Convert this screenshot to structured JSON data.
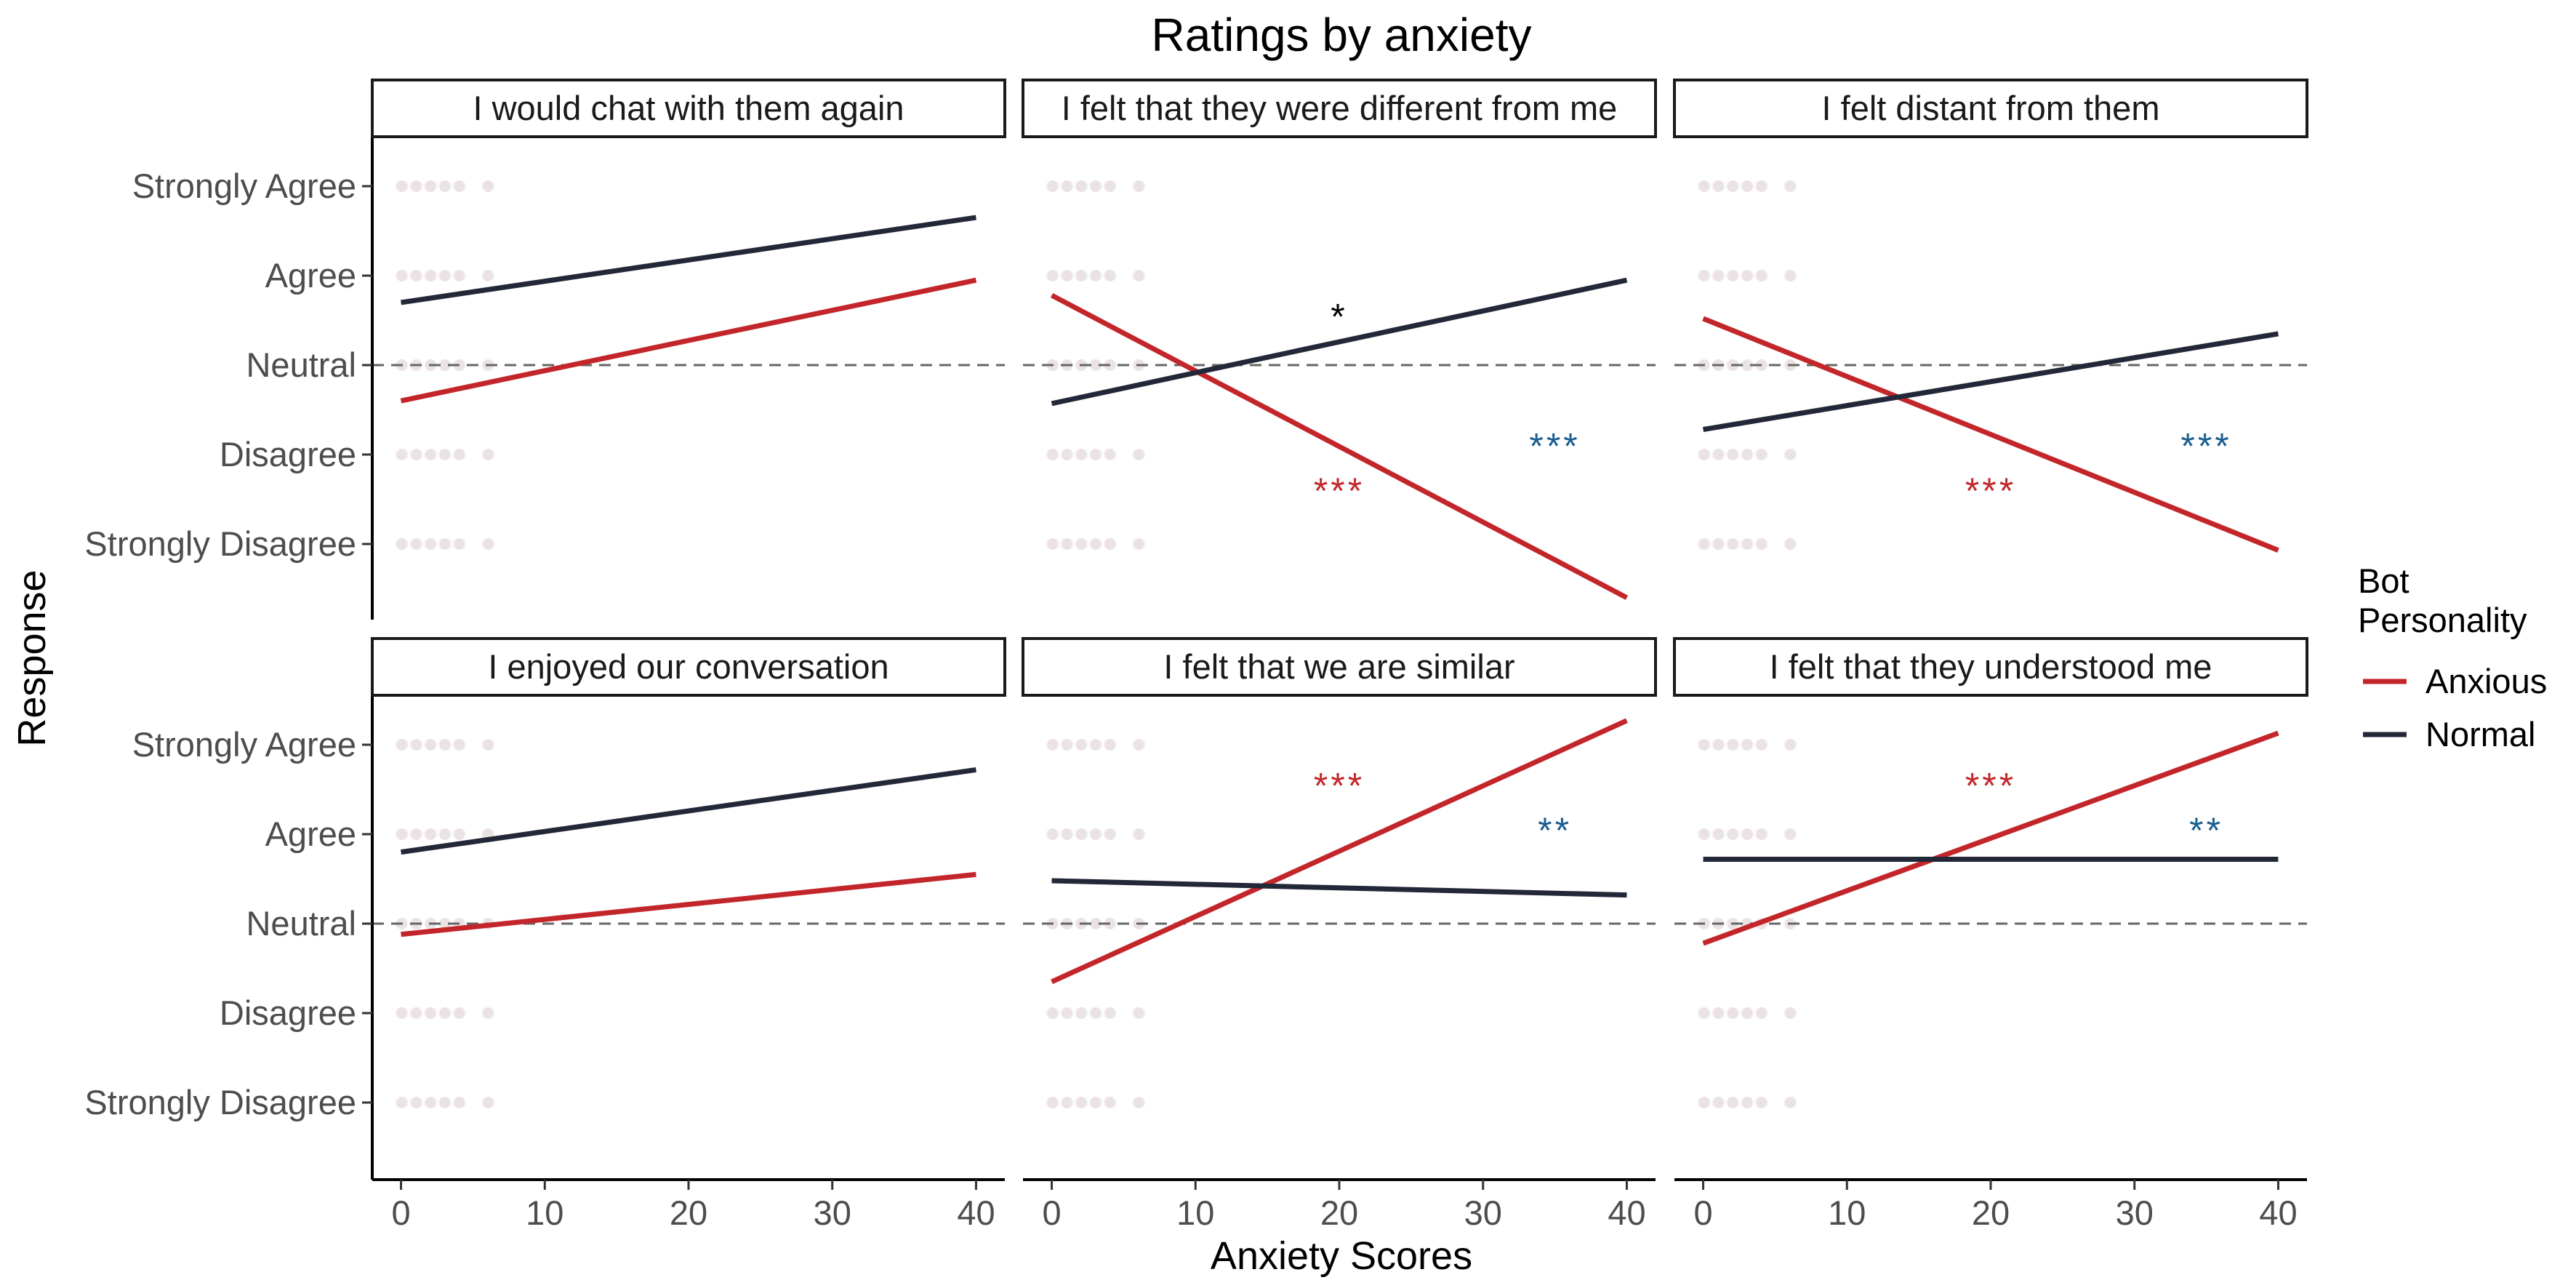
{
  "chart_data": {
    "type": "line",
    "title": "Ratings by anxiety",
    "xlabel": "Anxiety Scores",
    "ylabel": "Response",
    "xlim": [
      -2,
      42
    ],
    "x_ticks": [
      0,
      10,
      20,
      30,
      40
    ],
    "y_levels": [
      "Strongly Disagree",
      "Disagree",
      "Neutral",
      "Agree",
      "Strongly Agree"
    ],
    "y_values": [
      -2,
      -1,
      0,
      1,
      2
    ],
    "ylim": [
      -2.8,
      2.2
    ],
    "reference_line": {
      "y": 0,
      "style": "dashed",
      "color": "#666666"
    },
    "grid": false,
    "legend": {
      "title": "Bot\nPersonality",
      "position": "right",
      "entries": [
        {
          "name": "Anxious",
          "color": "#c3262a"
        },
        {
          "name": "Normal",
          "color": "#232838"
        }
      ]
    },
    "panels": [
      {
        "title": "I would chat with them again",
        "series": [
          {
            "name": "Anxious",
            "x": [
              0,
              40
            ],
            "y": [
              -0.4,
              0.95
            ]
          },
          {
            "name": "Normal",
            "x": [
              0,
              40
            ],
            "y": [
              0.7,
              1.65
            ]
          }
        ],
        "annotations": []
      },
      {
        "title": "I felt that they were different from me",
        "series": [
          {
            "name": "Anxious",
            "x": [
              0,
              40
            ],
            "y": [
              0.78,
              -2.6
            ]
          },
          {
            "name": "Normal",
            "x": [
              0,
              40
            ],
            "y": [
              -0.43,
              0.95
            ]
          }
        ],
        "annotations": [
          {
            "text": "*",
            "x": 20,
            "y": 0.55,
            "color": "#000000"
          },
          {
            "text": "***",
            "x": 35,
            "y": -0.9,
            "color": "#1b5e8e"
          },
          {
            "text": "***",
            "x": 20,
            "y": -1.4,
            "color": "#c3262a"
          }
        ]
      },
      {
        "title": "I felt distant from them",
        "series": [
          {
            "name": "Anxious",
            "x": [
              0,
              40
            ],
            "y": [
              0.52,
              -2.07
            ]
          },
          {
            "name": "Normal",
            "x": [
              0,
              40
            ],
            "y": [
              -0.72,
              0.35
            ]
          }
        ],
        "annotations": [
          {
            "text": "***",
            "x": 35,
            "y": -0.9,
            "color": "#1b5e8e"
          },
          {
            "text": "***",
            "x": 20,
            "y": -1.4,
            "color": "#c3262a"
          }
        ]
      },
      {
        "title": "I enjoyed our conversation",
        "series": [
          {
            "name": "Anxious",
            "x": [
              0,
              40
            ],
            "y": [
              -0.12,
              0.55
            ]
          },
          {
            "name": "Normal",
            "x": [
              0,
              40
            ],
            "y": [
              0.8,
              1.72
            ]
          }
        ],
        "annotations": []
      },
      {
        "title": "I felt that we are similar",
        "series": [
          {
            "name": "Anxious",
            "x": [
              0,
              40
            ],
            "y": [
              -0.65,
              2.27
            ]
          },
          {
            "name": "Normal",
            "x": [
              0,
              40
            ],
            "y": [
              0.48,
              0.32
            ]
          }
        ],
        "annotations": [
          {
            "text": "***",
            "x": 20,
            "y": 1.55,
            "color": "#c3262a"
          },
          {
            "text": "**",
            "x": 35,
            "y": 1.05,
            "color": "#1b5e8e"
          }
        ]
      },
      {
        "title": "I felt that they understood me",
        "series": [
          {
            "name": "Anxious",
            "x": [
              0,
              40
            ],
            "y": [
              -0.22,
              2.13
            ]
          },
          {
            "name": "Normal",
            "x": [
              0,
              40
            ],
            "y": [
              0.72,
              0.72
            ]
          }
        ],
        "annotations": [
          {
            "text": "***",
            "x": 20,
            "y": 1.55,
            "color": "#c3262a"
          },
          {
            "text": "**",
            "x": 35,
            "y": 1.05,
            "color": "#1b5e8e"
          }
        ]
      }
    ]
  }
}
